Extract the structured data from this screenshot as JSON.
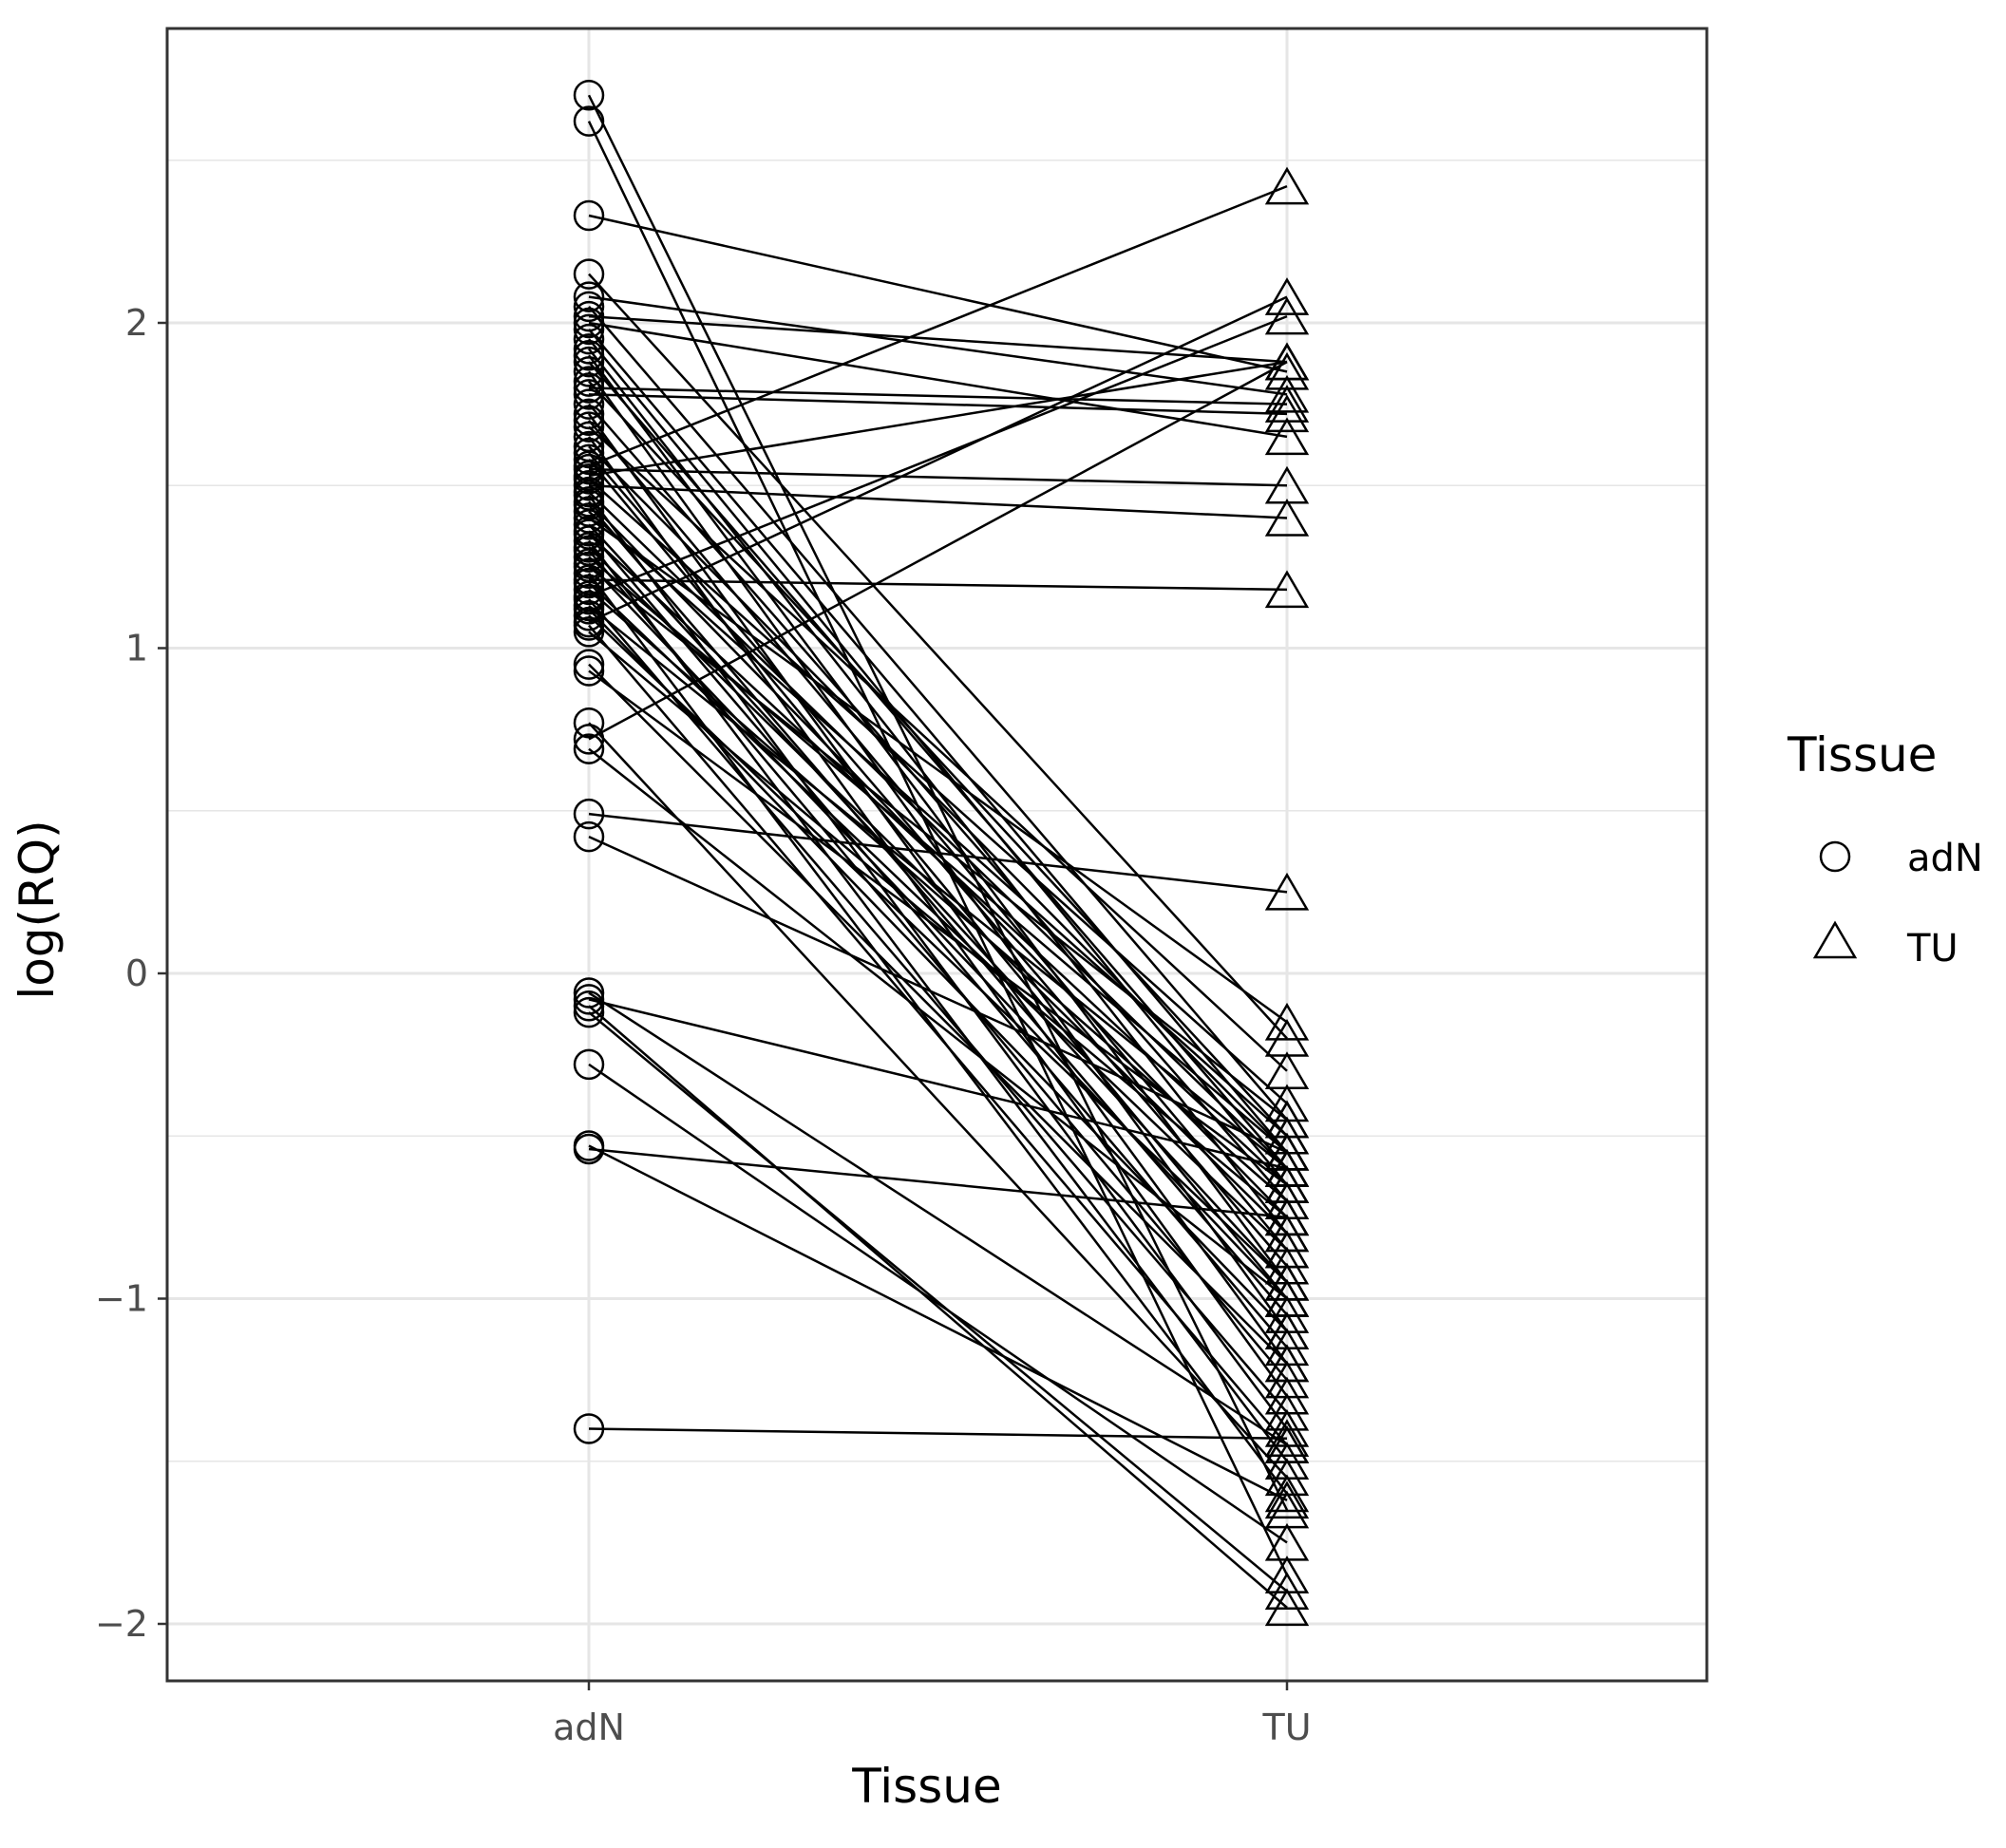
{
  "chart_data": {
    "type": "line",
    "xlabel": "Tissue",
    "ylabel": "log(RQ)",
    "categories": [
      "adN",
      "TU"
    ],
    "y_ticks": [
      -2,
      -1,
      0,
      1,
      2
    ],
    "y_tick_labels": [
      "−2",
      "−1",
      "0",
      "1",
      "2"
    ],
    "ylim": [
      -2.2,
      2.9
    ],
    "grid": true,
    "legend": {
      "title": "Tissue",
      "placement": "right",
      "entries": [
        {
          "label": "adN",
          "shape": "circle"
        },
        {
          "label": "TU",
          "shape": "triangle"
        }
      ]
    },
    "colors": {
      "line": "#000000",
      "grid": "#e6e6e6",
      "border": "#333333",
      "tick_text": "#4d4d4d"
    },
    "pairs": [
      [
        2.7,
        -1.65
      ],
      [
        2.62,
        -1.85
      ],
      [
        2.33,
        1.85
      ],
      [
        2.15,
        -0.2
      ],
      [
        2.08,
        1.78
      ],
      [
        2.05,
        -0.45
      ],
      [
        2.02,
        1.88
      ],
      [
        2.0,
        1.65
      ],
      [
        1.98,
        -0.55
      ],
      [
        1.95,
        -0.65
      ],
      [
        1.92,
        -0.8
      ],
      [
        1.9,
        -0.95
      ],
      [
        1.88,
        -0.6
      ],
      [
        1.85,
        -1.1
      ],
      [
        1.82,
        -0.5
      ],
      [
        1.8,
        1.75
      ],
      [
        1.78,
        1.72
      ],
      [
        1.75,
        -0.7
      ],
      [
        1.72,
        -1.2
      ],
      [
        1.7,
        -0.85
      ],
      [
        1.68,
        -0.3
      ],
      [
        1.65,
        -1.3
      ],
      [
        1.62,
        -0.55
      ],
      [
        1.6,
        -0.9
      ],
      [
        1.58,
        -1.0
      ],
      [
        1.56,
        2.42
      ],
      [
        1.55,
        1.5
      ],
      [
        1.53,
        1.88
      ],
      [
        1.52,
        -0.4
      ],
      [
        1.5,
        1.4
      ],
      [
        1.48,
        -0.6
      ],
      [
        1.47,
        -1.4
      ],
      [
        1.45,
        -0.75
      ],
      [
        1.44,
        -1.05
      ],
      [
        1.42,
        -0.5
      ],
      [
        1.4,
        -0.15
      ],
      [
        1.38,
        -0.95
      ],
      [
        1.36,
        -1.15
      ],
      [
        1.35,
        -0.65
      ],
      [
        1.33,
        -1.5
      ],
      [
        1.31,
        -0.8
      ],
      [
        1.3,
        -1.25
      ],
      [
        1.28,
        -0.55
      ],
      [
        1.26,
        -1.0
      ],
      [
        1.25,
        -0.45
      ],
      [
        1.23,
        -1.6
      ],
      [
        1.21,
        1.18
      ],
      [
        1.2,
        -0.85
      ],
      [
        1.18,
        -0.7
      ],
      [
        1.16,
        2.02
      ],
      [
        1.15,
        -1.35
      ],
      [
        1.13,
        -0.6
      ],
      [
        1.12,
        -1.1
      ],
      [
        1.1,
        -0.95
      ],
      [
        1.08,
        2.08
      ],
      [
        1.07,
        -1.45
      ],
      [
        1.05,
        -0.75
      ],
      [
        0.95,
        -1.2
      ],
      [
        0.93,
        -0.65
      ],
      [
        0.77,
        -1.55
      ],
      [
        0.72,
        1.88
      ],
      [
        0.69,
        -1.0
      ],
      [
        0.49,
        0.25
      ],
      [
        0.42,
        -0.55
      ],
      [
        -0.06,
        -1.45
      ],
      [
        -0.08,
        -0.6
      ],
      [
        -0.1,
        -1.95
      ],
      [
        -0.12,
        -1.9
      ],
      [
        -0.28,
        -1.75
      ],
      [
        -0.53,
        -1.62
      ],
      [
        -0.54,
        -0.75
      ],
      [
        -1.4,
        -1.43
      ]
    ]
  }
}
